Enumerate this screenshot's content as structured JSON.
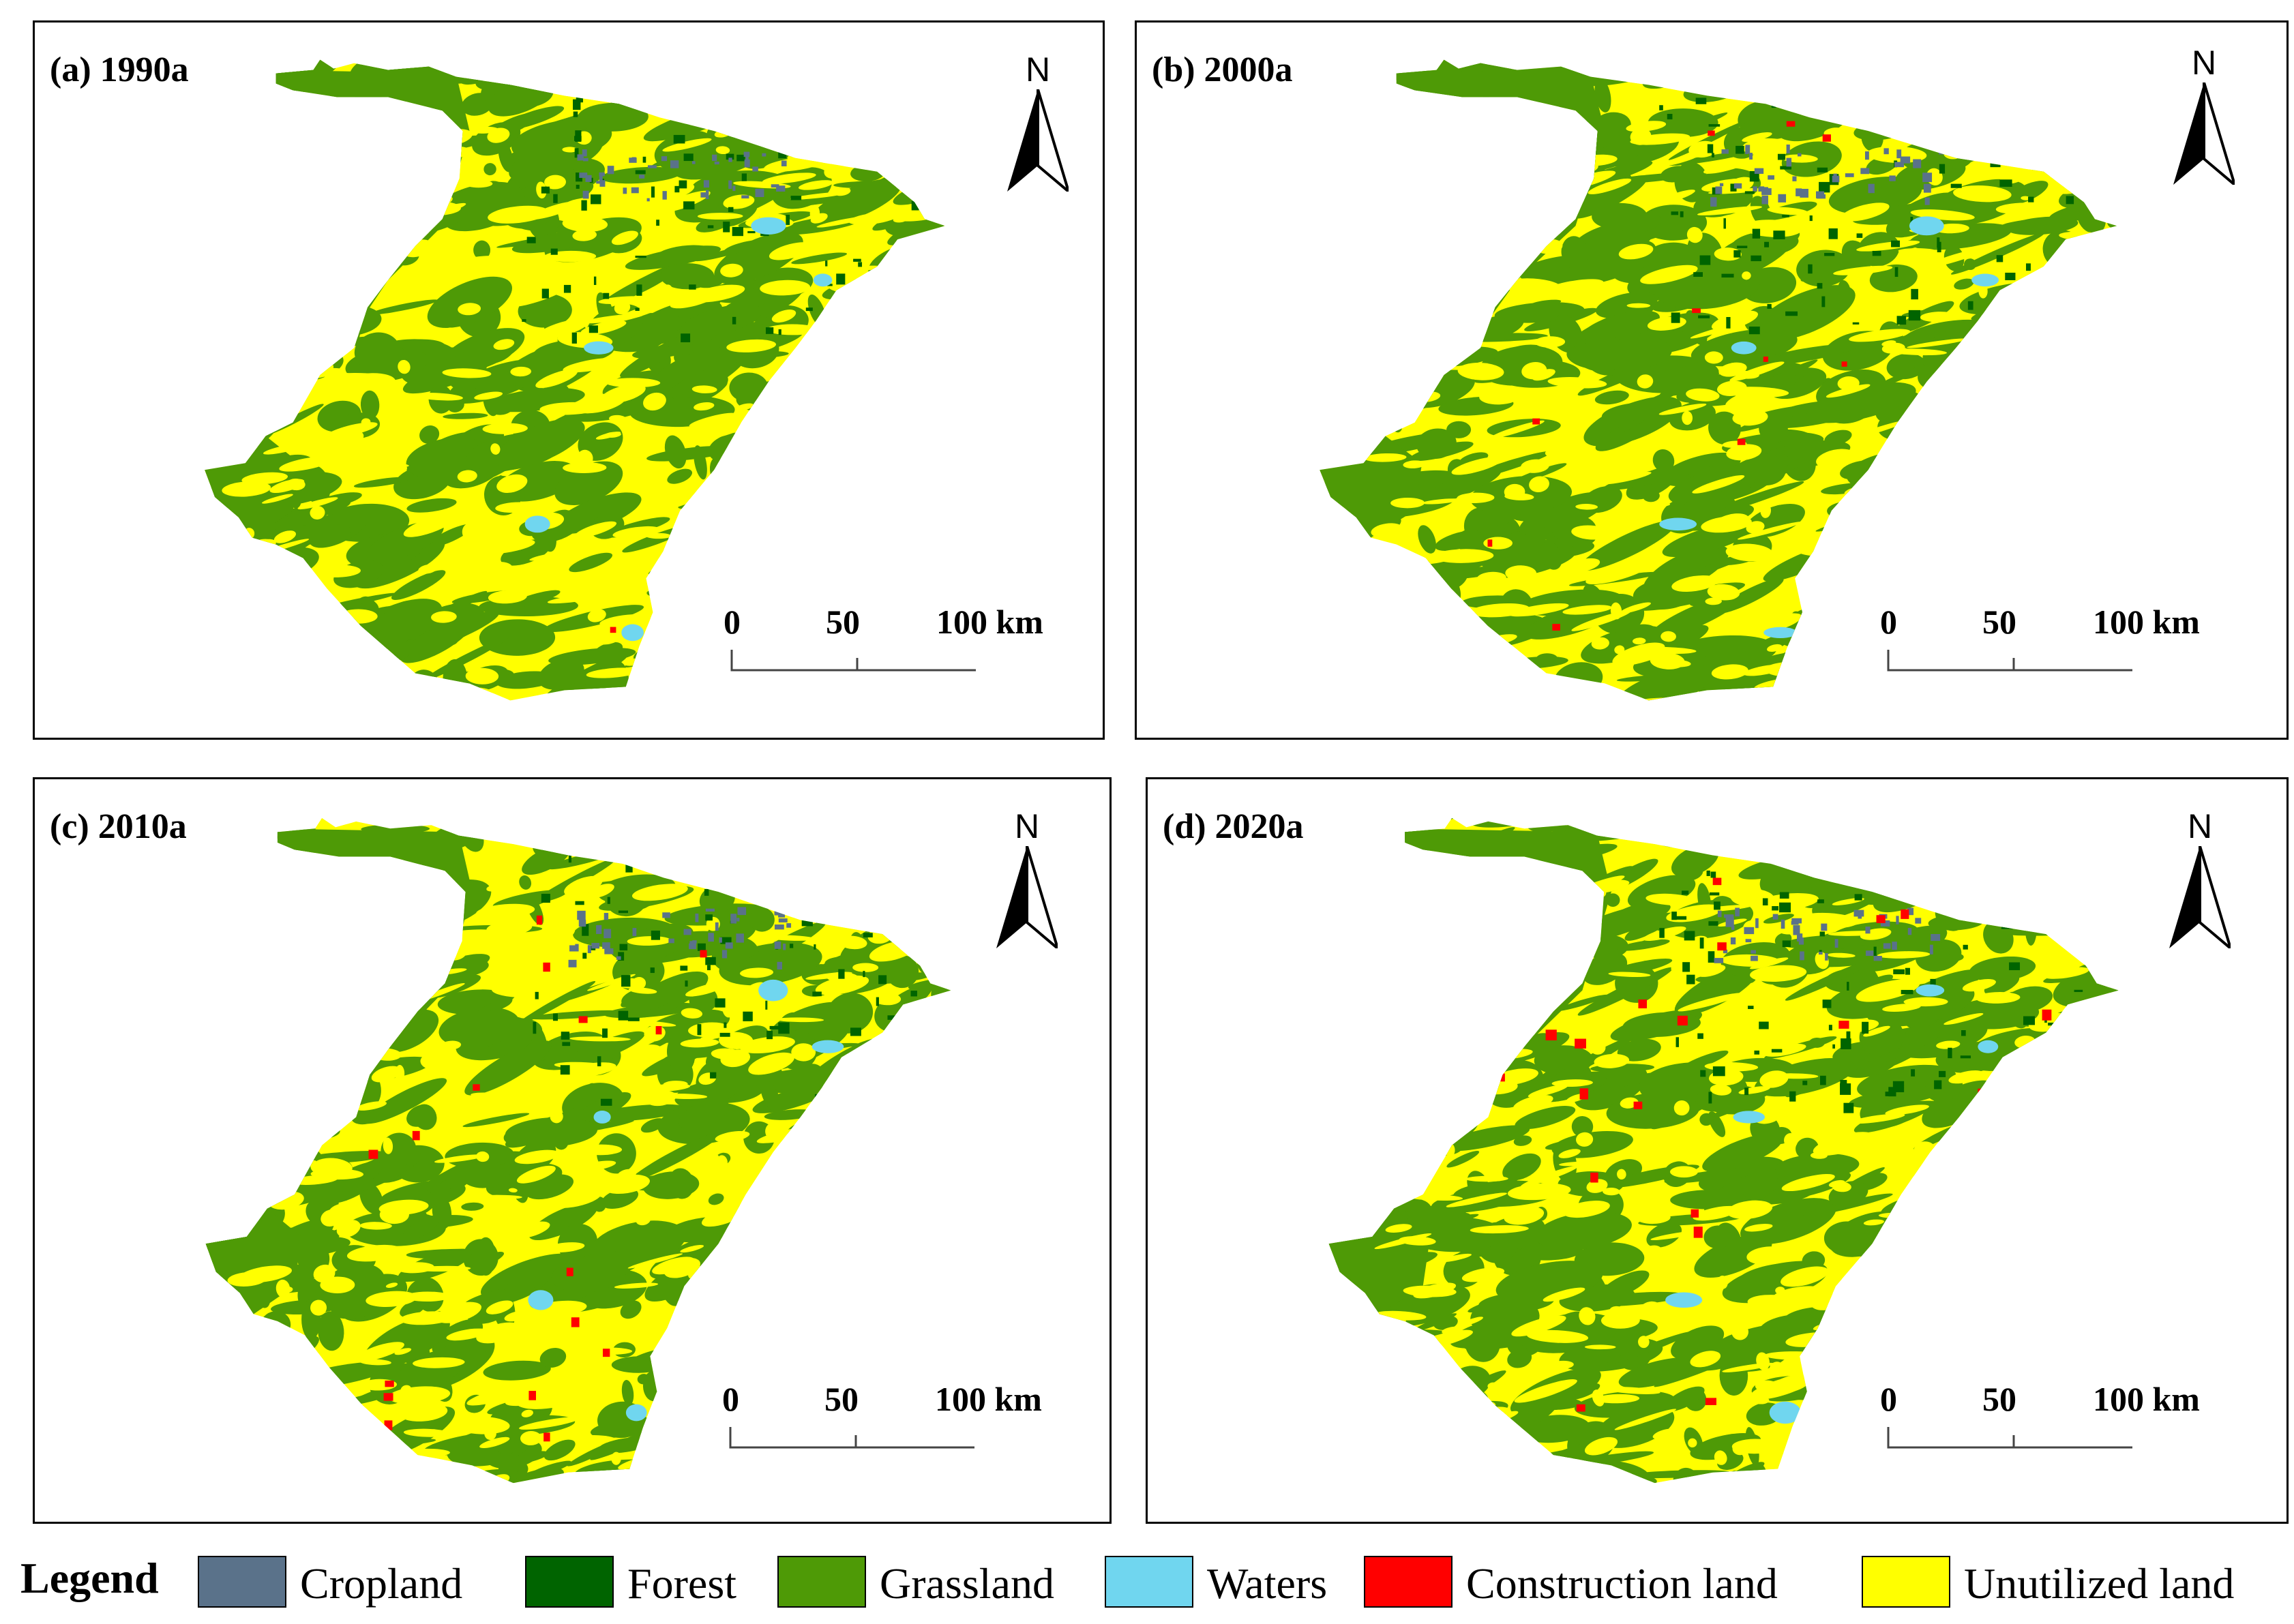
{
  "panels": [
    {
      "label": "(a) 1990a",
      "north": "N",
      "scale": [
        "0",
        "50",
        "100 km"
      ]
    },
    {
      "label": "(b) 2000a",
      "north": "N",
      "scale": [
        "0",
        "50",
        "100 km"
      ]
    },
    {
      "label": "(c) 2010a",
      "north": "N",
      "scale": [
        "0",
        "50",
        "100 km"
      ]
    },
    {
      "label": "(d) 2020a",
      "north": "N",
      "scale": [
        "0",
        "50",
        "100 km"
      ]
    }
  ],
  "legend": {
    "title": "Legend",
    "items": [
      {
        "label": "Cropland",
        "color": "#5a728a"
      },
      {
        "label": "Forest",
        "color": "#006400"
      },
      {
        "label": "Grassland",
        "color": "#4e9a06"
      },
      {
        "label": "Waters",
        "color": "#70d6ef"
      },
      {
        "label": "Construction land",
        "color": "#ff0000"
      },
      {
        "label": "Unutilized land",
        "color": "#ffff00"
      }
    ]
  },
  "icons": {
    "north_arrow": "north-arrow-icon"
  }
}
